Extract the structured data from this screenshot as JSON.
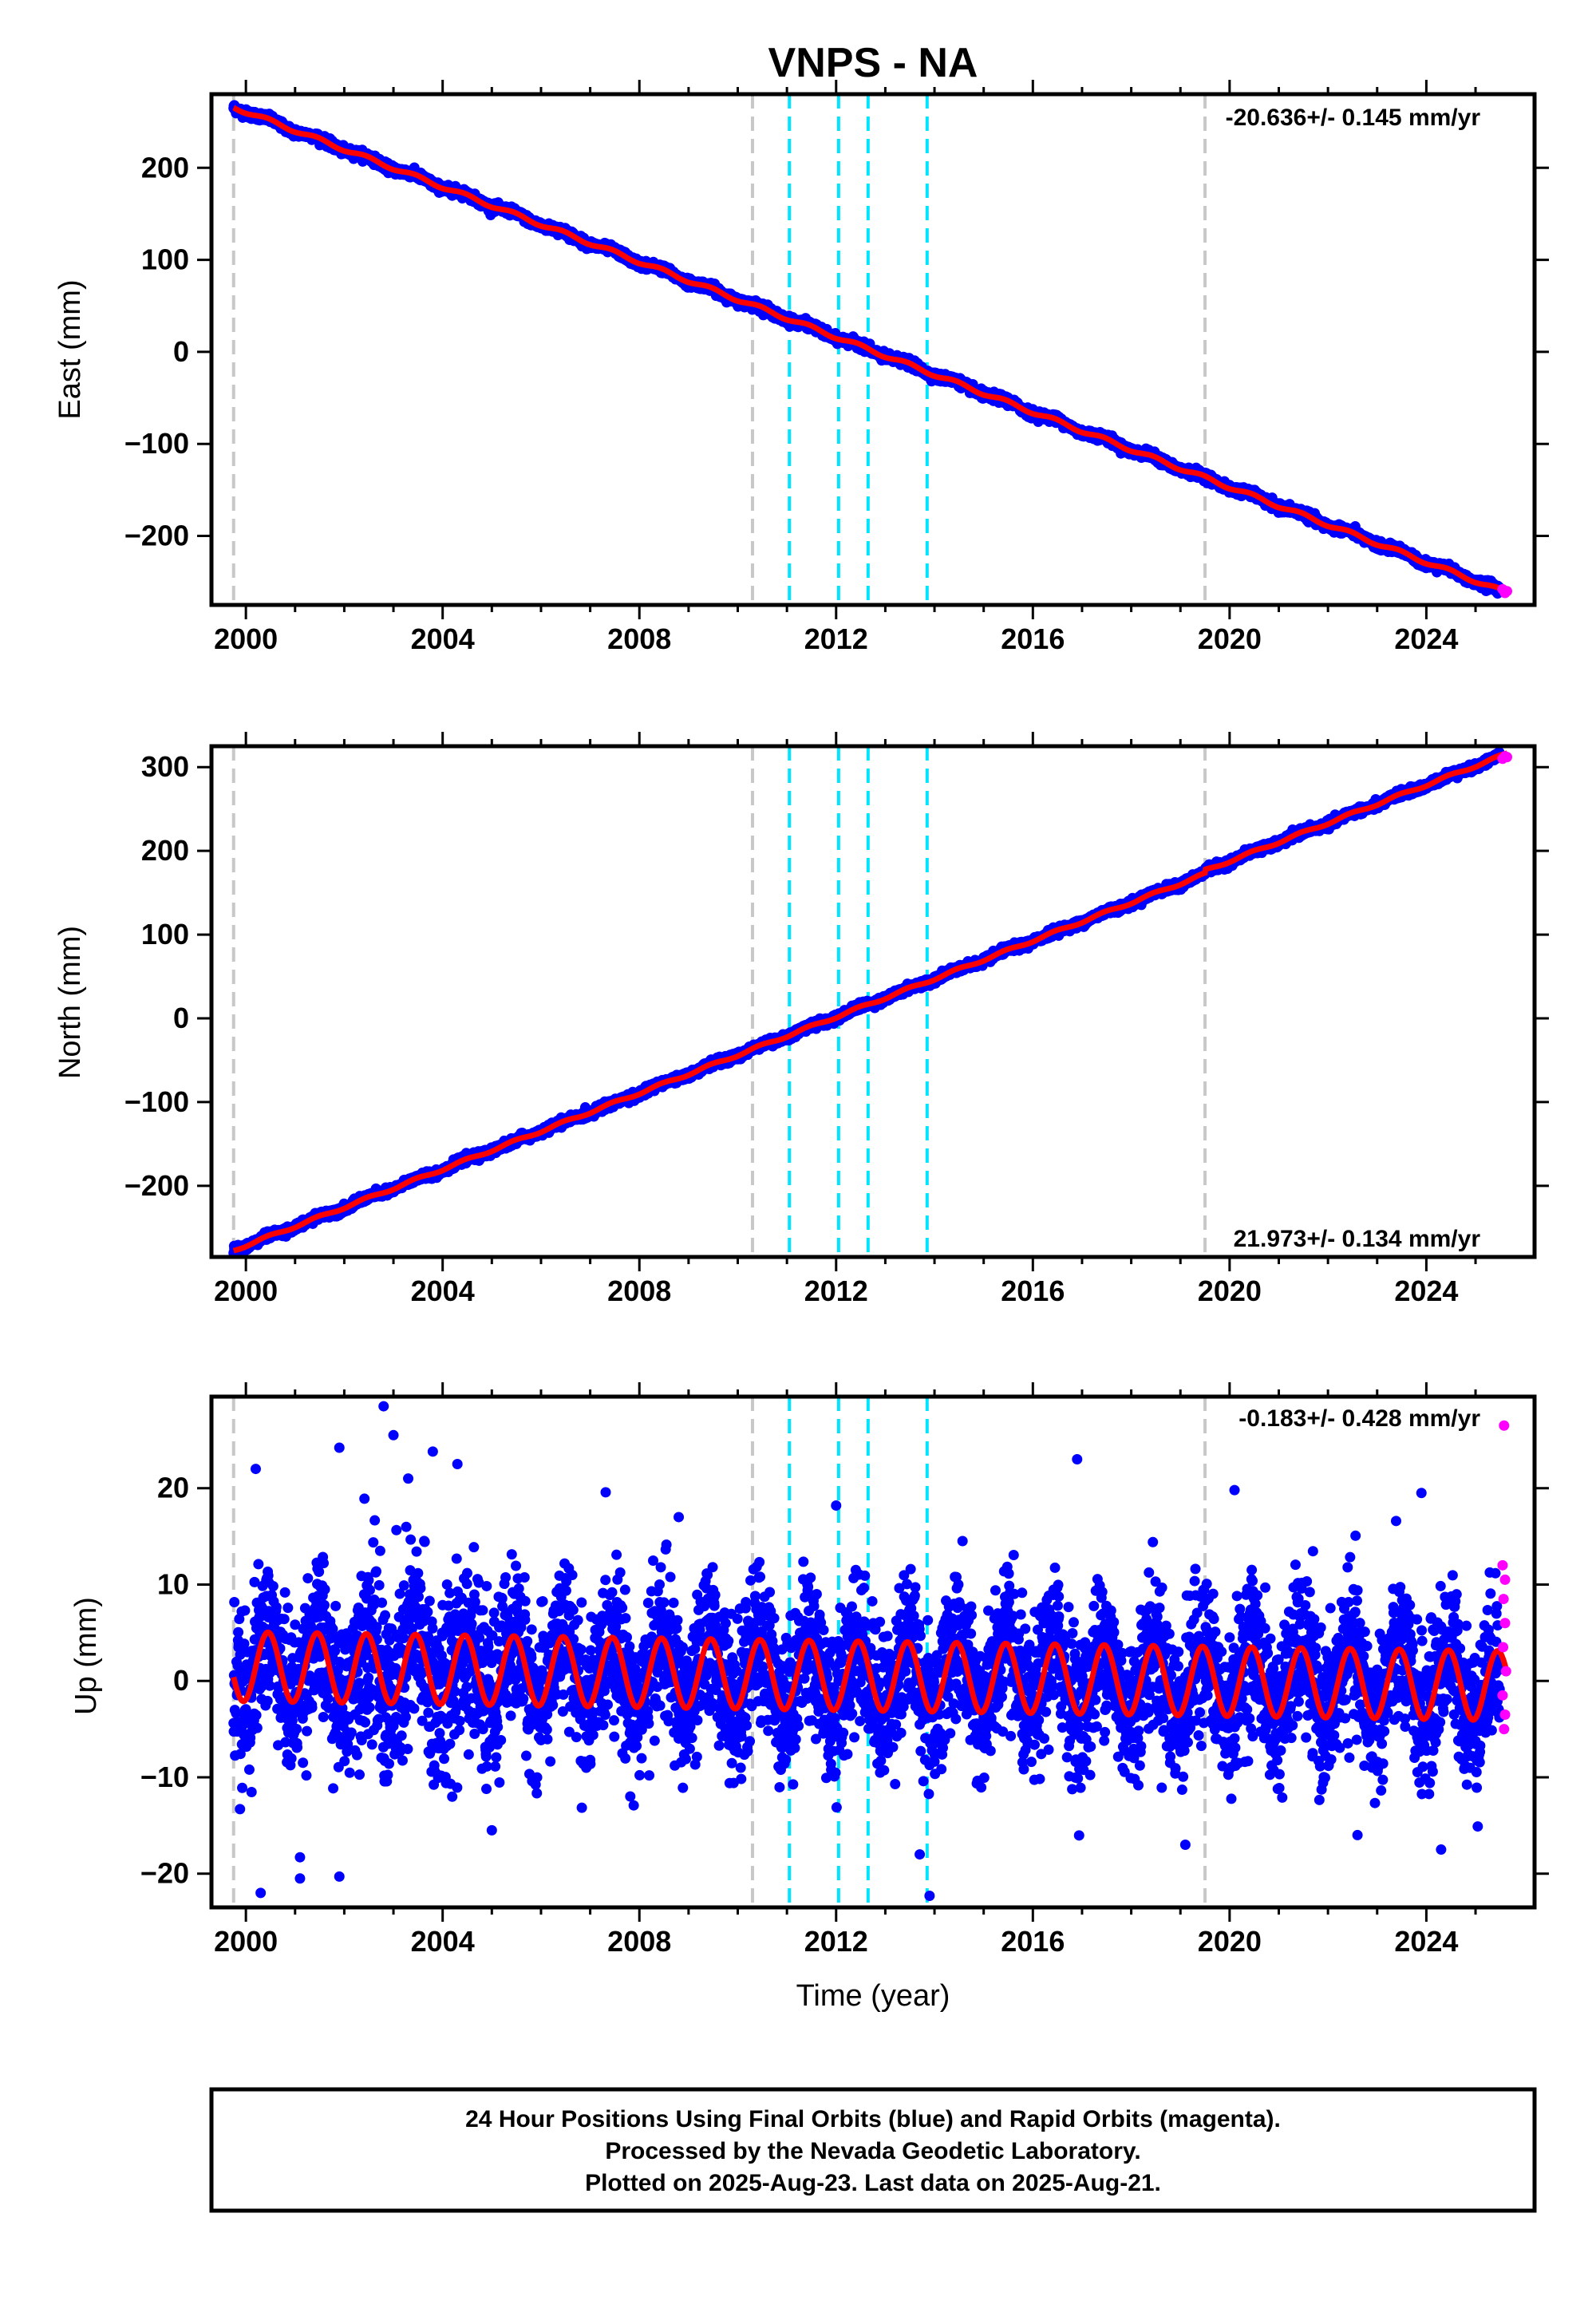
{
  "colors": {
    "final_orbits": "#0000ff",
    "rapid_orbits": "#ff00ff",
    "model_fit": "#ff0000",
    "event_gray": "#c8c8c8",
    "event_cyan": "#00e5ff"
  },
  "chart_data": [
    {
      "type": "scatter",
      "title": "VNPS - NA",
      "xlabel": "",
      "ylabel": "East (mm)",
      "xlim": [
        1999.3,
        2026.2
      ],
      "ylim": [
        -275,
        280
      ],
      "xticks": [
        2000,
        2004,
        2008,
        2012,
        2016,
        2020,
        2024
      ],
      "yticks": [
        -200,
        -100,
        0,
        100,
        200
      ],
      "rate_annotation": "-20.636+/- 0.145 mm/yr",
      "model": {
        "start_year": 1999.75,
        "end_year": 2025.64,
        "start_value": 266,
        "end_value": -262,
        "annual_amplitude": 2.0
      },
      "events_gray": [
        1999.75,
        2010.3,
        2019.5
      ],
      "events_cyan": [
        2011.05,
        2012.05,
        2012.65,
        2013.85
      ],
      "rapid_points": [
        {
          "x": 2025.55,
          "y": -258
        },
        {
          "x": 2025.6,
          "y": -262
        },
        {
          "x": 2025.64,
          "y": -260
        }
      ]
    },
    {
      "type": "scatter",
      "title": "",
      "xlabel": "",
      "ylabel": "North (mm)",
      "xlim": [
        1999.3,
        2026.2
      ],
      "ylim": [
        -285,
        325
      ],
      "xticks": [
        2000,
        2004,
        2008,
        2012,
        2016,
        2020,
        2024
      ],
      "yticks": [
        -200,
        -100,
        0,
        100,
        200,
        300
      ],
      "rate_annotation": "21.973+/- 0.134 mm/yr",
      "model": {
        "start_year": 1999.75,
        "end_year": 2025.64,
        "start_value": -277,
        "end_value": 312,
        "annual_amplitude": 1.5
      },
      "offset": {
        "year": 2019.5,
        "value": 4
      },
      "events_gray": [
        1999.75,
        2010.3,
        2019.5
      ],
      "events_cyan": [
        2011.05,
        2012.05,
        2012.65,
        2013.85
      ],
      "rapid_points": [
        {
          "x": 2025.55,
          "y": 310
        },
        {
          "x": 2025.6,
          "y": 313
        },
        {
          "x": 2025.64,
          "y": 312
        }
      ]
    },
    {
      "type": "scatter",
      "title": "",
      "xlabel": "Time (year)",
      "ylabel": "Up (mm)",
      "xlim": [
        1999.3,
        2026.2
      ],
      "ylim": [
        -23.5,
        29.5
      ],
      "xticks": [
        2000,
        2004,
        2008,
        2012,
        2016,
        2020,
        2024
      ],
      "yticks": [
        -20,
        -10,
        0,
        10,
        20
      ],
      "rate_annotation": "-0.183+/- 0.428 mm/yr",
      "model": {
        "start_year": 1999.75,
        "end_year": 2025.64,
        "start_value": 1.5,
        "end_value": -0.5,
        "annual_amplitude": 3.6
      },
      "events_gray": [
        1999.75,
        2010.3,
        2019.5
      ],
      "events_cyan": [
        2011.05,
        2012.05,
        2012.65,
        2013.85
      ],
      "outliers": [
        {
          "x": 2002.8,
          "y": 28.5
        },
        {
          "x": 2003.0,
          "y": 25.5
        },
        {
          "x": 2001.9,
          "y": 24.2
        },
        {
          "x": 2003.8,
          "y": 23.8
        },
        {
          "x": 2004.3,
          "y": 22.5
        },
        {
          "x": 2000.2,
          "y": 22.0
        },
        {
          "x": 2003.3,
          "y": 21.0
        },
        {
          "x": 2016.9,
          "y": 23.0
        },
        {
          "x": 2020.1,
          "y": 19.8
        },
        {
          "x": 2023.9,
          "y": 19.5
        },
        {
          "x": 2012.0,
          "y": 18.2
        },
        {
          "x": 2008.8,
          "y": 17.0
        },
        {
          "x": 2000.3,
          "y": -22.0
        },
        {
          "x": 2001.1,
          "y": -20.5
        },
        {
          "x": 2001.9,
          "y": -20.3
        },
        {
          "x": 2013.9,
          "y": -22.3
        },
        {
          "x": 2001.1,
          "y": -18.3
        },
        {
          "x": 2019.1,
          "y": -17.0
        },
        {
          "x": 2024.3,
          "y": -17.5
        },
        {
          "x": 2013.7,
          "y": -18.0
        },
        {
          "x": 2022.6,
          "y": -16.0
        },
        {
          "x": 2005.0,
          "y": -15.5
        }
      ],
      "rapid_points": [
        {
          "x": 2025.58,
          "y": 26.5
        },
        {
          "x": 2025.55,
          "y": 12.0
        },
        {
          "x": 2025.6,
          "y": 10.5
        },
        {
          "x": 2025.57,
          "y": 8.5
        },
        {
          "x": 2025.6,
          "y": 6.0
        },
        {
          "x": 2025.56,
          "y": 3.5
        },
        {
          "x": 2025.62,
          "y": 1.0
        },
        {
          "x": 2025.55,
          "y": -1.5
        },
        {
          "x": 2025.6,
          "y": -3.5
        },
        {
          "x": 2025.58,
          "y": -5.0
        }
      ]
    }
  ],
  "footer": {
    "line1": "24 Hour Positions Using Final Orbits (blue) and Rapid Orbits (magenta).",
    "line2": "Processed by the Nevada Geodetic Laboratory.",
    "line3": "Plotted on 2025-Aug-23. Last data on 2025-Aug-21."
  }
}
